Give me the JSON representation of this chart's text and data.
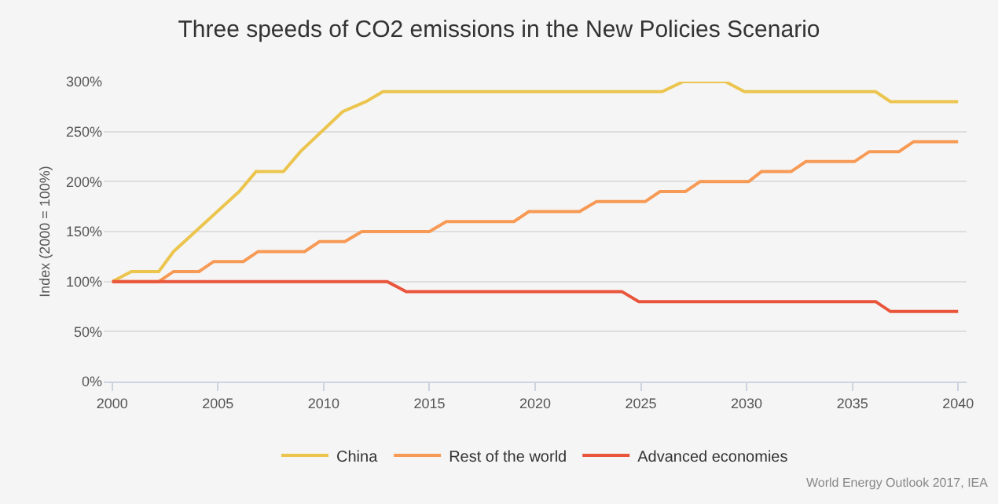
{
  "chart_data": {
    "type": "line",
    "title": "Three speeds of CO2 emissions in the New Policies Scenario",
    "ylabel": "Index (2000 = 100%)",
    "xlim": [
      1999.6,
      2040.4
    ],
    "xticks": [
      2000,
      2005,
      2010,
      2015,
      2020,
      2025,
      2030,
      2035,
      2040
    ],
    "ylim": [
      0,
      300
    ],
    "yticks": [
      {
        "value": 0,
        "label": "0%"
      },
      {
        "value": 50,
        "label": "50%"
      },
      {
        "value": 100,
        "label": "100%"
      },
      {
        "value": 150,
        "label": "150%"
      },
      {
        "value": 200,
        "label": "200%"
      },
      {
        "value": 250,
        "label": "250%"
      },
      {
        "value": 300,
        "label": "300%"
      }
    ],
    "grid": "y",
    "legend": "bottom",
    "marker": "none",
    "line_style": "solid",
    "series": [
      {
        "name": "China",
        "color": "#ecc54e",
        "x": [
          2000,
          2000.9,
          2002.2,
          2002.9,
          2006.0,
          2006.8,
          2008.1,
          2008.9,
          2010.9,
          2012.0,
          2012.8,
          2026.0,
          2027.0,
          2029.0,
          2029.9,
          2036.1,
          2036.8,
          2040
        ],
        "values": [
          100,
          110,
          110,
          130,
          190,
          210,
          210,
          230,
          270,
          280,
          290,
          290,
          300,
          300,
          290,
          290,
          280,
          280
        ]
      },
      {
        "name": "Rest of the world",
        "color": "#f79a55",
        "x": [
          2000,
          2002.2,
          2002.9,
          2004.1,
          2004.8,
          2006.2,
          2006.9,
          2009.1,
          2009.8,
          2011.0,
          2011.8,
          2015.0,
          2015.8,
          2019.0,
          2019.7,
          2022.1,
          2022.9,
          2025.2,
          2025.9,
          2027.1,
          2027.8,
          2030.1,
          2030.7,
          2032.1,
          2032.8,
          2035.1,
          2035.8,
          2037.2,
          2037.9,
          2040
        ],
        "values": [
          100,
          100,
          110,
          110,
          120,
          120,
          130,
          130,
          140,
          140,
          150,
          150,
          160,
          160,
          170,
          170,
          180,
          180,
          190,
          190,
          200,
          200,
          210,
          210,
          220,
          220,
          230,
          230,
          240,
          240
        ]
      },
      {
        "name": "Advanced economies",
        "color": "#e9553b",
        "x": [
          2000,
          2013.0,
          2013.9,
          2024.1,
          2024.9,
          2036.1,
          2036.8,
          2040
        ],
        "values": [
          100,
          100,
          90,
          90,
          80,
          80,
          70,
          70
        ]
      }
    ],
    "annotations": [
      {
        "text": "World Energy Outlook 2017, IEA"
      }
    ]
  }
}
